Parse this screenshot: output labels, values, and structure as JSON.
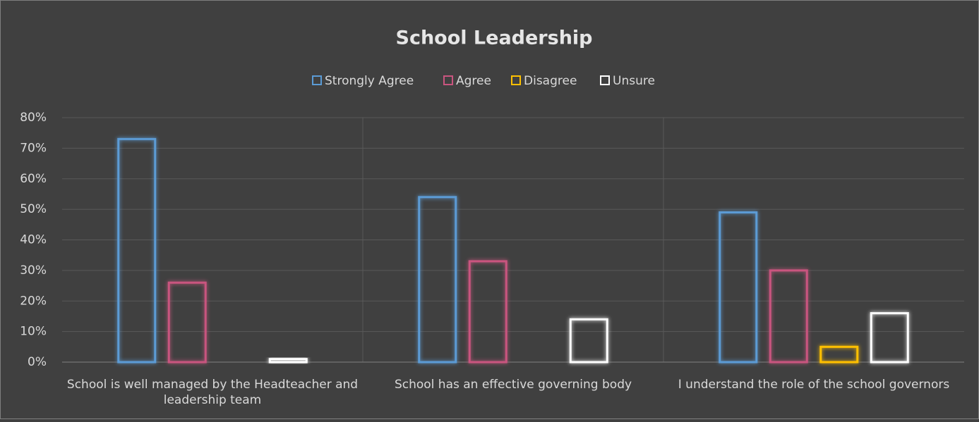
{
  "chart_data": {
    "type": "bar",
    "title": "School Leadership",
    "categories": [
      "School is well managed by the Headteacher and leadership team",
      "School has an effective governing body",
      "I understand the role of the school governors"
    ],
    "series": [
      {
        "name": "Strongly Agree",
        "color": "#5b9bd5",
        "values": [
          73,
          54,
          49
        ]
      },
      {
        "name": "Agree",
        "color": "#c9557f",
        "values": [
          26,
          33,
          30
        ]
      },
      {
        "name": "Disagree",
        "color": "#ffc000",
        "values": [
          0,
          0,
          5
        ]
      },
      {
        "name": "Unsure",
        "color": "#ffffff",
        "values": [
          1,
          14,
          16
        ]
      }
    ],
    "ylim": [
      0,
      80
    ],
    "yticks": [
      {
        "value": 0,
        "label": "0%"
      },
      {
        "value": 10,
        "label": "10%"
      },
      {
        "value": 20,
        "label": "20%"
      },
      {
        "value": 30,
        "label": "30%"
      },
      {
        "value": 40,
        "label": "40%"
      },
      {
        "value": 50,
        "label": "50%"
      },
      {
        "value": 60,
        "label": "60%"
      },
      {
        "value": 70,
        "label": "70%"
      },
      {
        "value": 80,
        "label": "80%"
      }
    ],
    "grid": true,
    "legend": "top"
  }
}
